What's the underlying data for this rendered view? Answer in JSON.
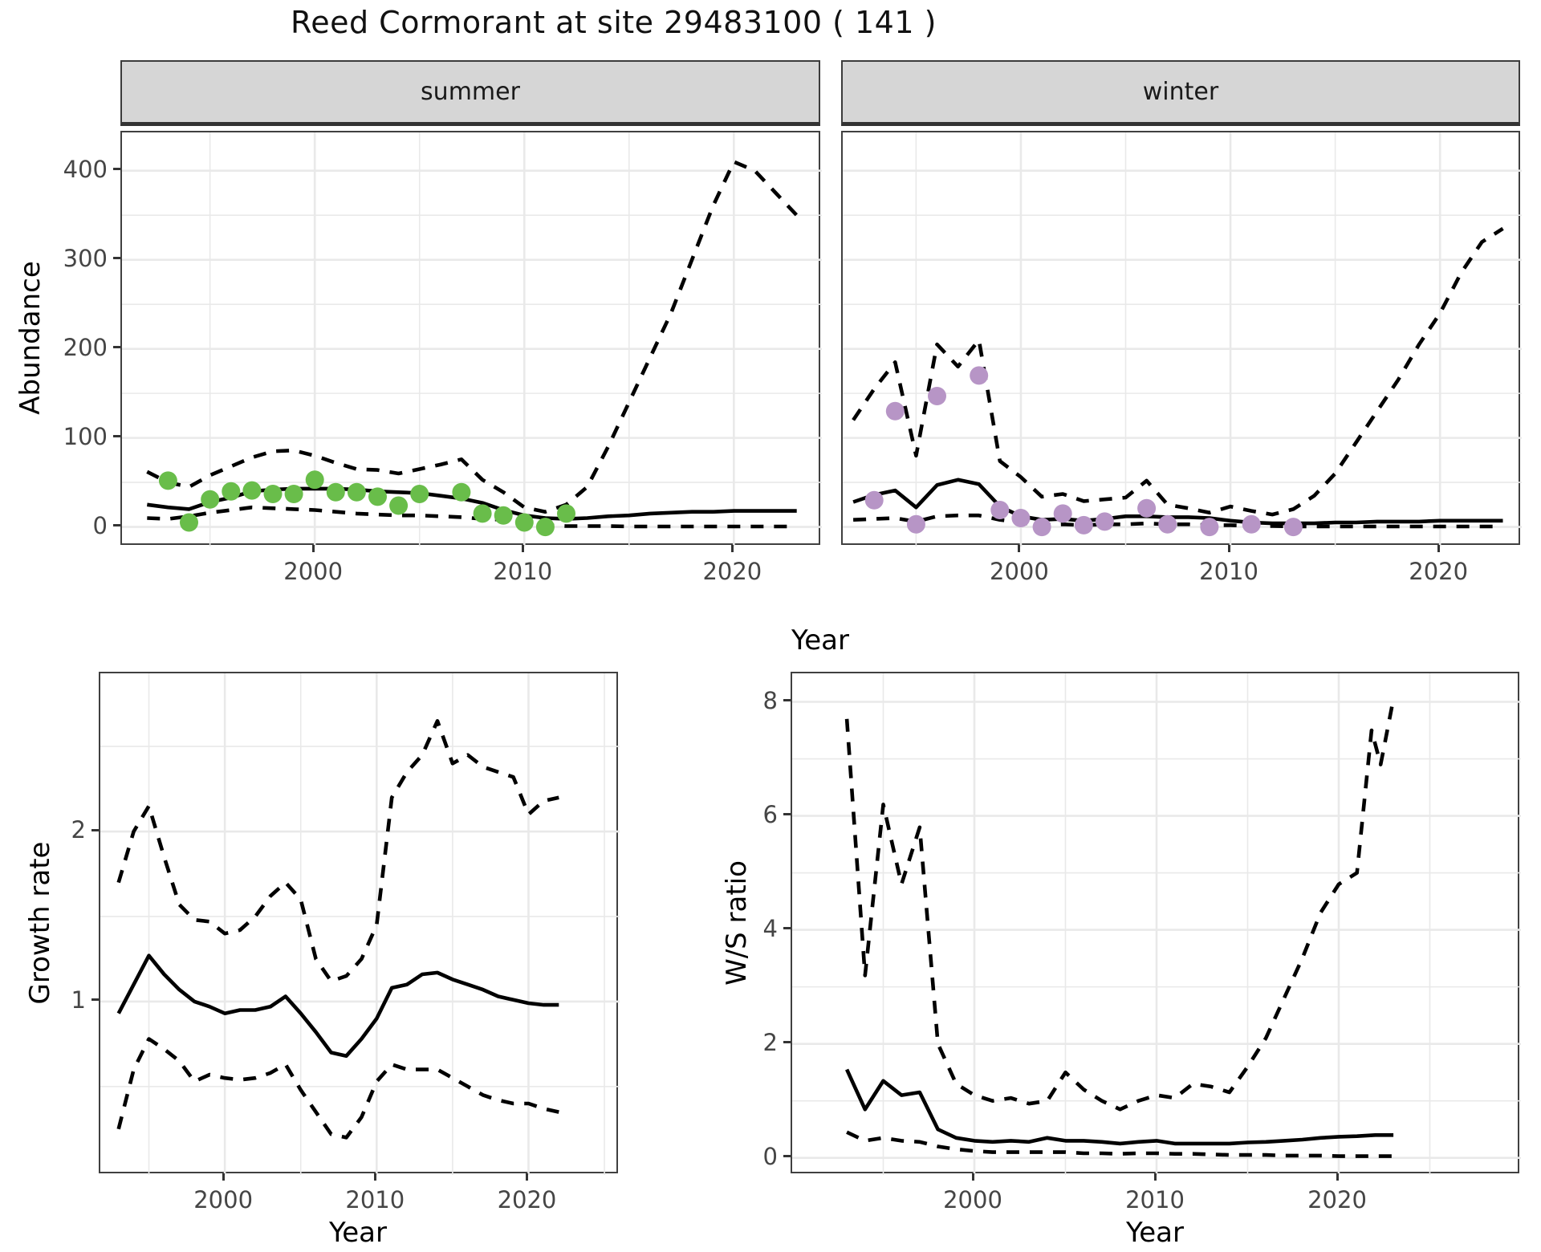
{
  "title": "Reed Cormorant at site 29483100 ( 141 )",
  "facets": {
    "summer": "summer",
    "winter": "winter"
  },
  "axis_labels": {
    "abundance": "Abundance",
    "year_top": "Year",
    "year_bottom_left": "Year",
    "year_bottom_right": "Year",
    "growth_rate": "Growth rate",
    "ws_ratio": "W/S ratio"
  },
  "colors": {
    "observed_summer": "#69bd4a",
    "observed_winter": "#b795c6",
    "line": "#000000",
    "grid": "#e9e9e9",
    "strip_bg": "#d6d6d6",
    "panel_border": "#404040",
    "tick_text": "#454545"
  },
  "chart_data": [
    {
      "id": "summer-abundance",
      "type": "line",
      "title": "summer",
      "xlabel": "Year",
      "ylabel": "Abundance",
      "xlim": [
        1990.8,
        2024.2
      ],
      "ylim": [
        -22,
        443
      ],
      "xticks": [
        2000,
        2010,
        2020
      ],
      "yticks": [
        0,
        100,
        200,
        300,
        400
      ],
      "xminor": [
        1995,
        2005,
        2015
      ],
      "yminor": [
        50,
        150,
        250,
        350
      ],
      "grid": true,
      "legend_position": "none",
      "series": [
        {
          "name": "ci-upper",
          "style": "dashed",
          "x": [
            1992,
            1993,
            1994,
            1995,
            1996,
            1997,
            1998,
            1999,
            2000,
            2001,
            2002,
            2003,
            2004,
            2005,
            2006,
            2007,
            2008,
            2009,
            2010,
            2011,
            2012,
            2013,
            2014,
            2015,
            2016,
            2017,
            2018,
            2019,
            2020,
            2021,
            2022,
            2023
          ],
          "y": [
            62,
            50,
            45,
            58,
            68,
            78,
            85,
            86,
            80,
            72,
            65,
            64,
            60,
            65,
            70,
            76,
            53,
            39,
            22,
            17,
            25,
            45,
            90,
            140,
            190,
            240,
            300,
            360,
            410,
            400,
            375,
            350
          ]
        },
        {
          "name": "ci-lower",
          "style": "dashed",
          "x": [
            1992,
            1993,
            1994,
            1995,
            1996,
            1997,
            1998,
            1999,
            2000,
            2001,
            2002,
            2003,
            2004,
            2005,
            2006,
            2007,
            2008,
            2009,
            2010,
            2011,
            2012,
            2013,
            2014,
            2015,
            2016,
            2017,
            2018,
            2019,
            2020,
            2021,
            2022,
            2023
          ],
          "y": [
            10,
            9,
            12,
            16,
            19,
            22,
            21,
            20,
            19,
            17,
            15,
            14,
            13,
            13,
            12,
            11,
            9,
            8,
            5,
            2,
            1,
            1,
            1,
            0.5,
            0.5,
            0.5,
            0.5,
            0.5,
            0.5,
            0.5,
            0.5,
            0.5
          ]
        },
        {
          "name": "fit-median",
          "style": "solid",
          "x": [
            1992,
            1993,
            1994,
            1995,
            1996,
            1997,
            1998,
            1999,
            2000,
            2001,
            2002,
            2003,
            2004,
            2005,
            2006,
            2007,
            2008,
            2009,
            2010,
            2011,
            2012,
            2013,
            2014,
            2015,
            2016,
            2017,
            2018,
            2019,
            2020,
            2021,
            2022,
            2023
          ],
          "y": [
            25,
            22,
            20,
            28,
            33,
            40,
            42,
            43,
            43,
            43,
            42,
            40,
            39,
            38,
            35,
            32,
            27,
            19,
            13,
            10,
            9,
            10,
            12,
            13,
            15,
            16,
            17,
            17,
            18,
            18,
            18,
            18
          ]
        }
      ],
      "points": {
        "name": "observed-summer",
        "color": "#69bd4a",
        "x": [
          1993,
          1994,
          1995,
          1996,
          1997,
          1998,
          1999,
          2000,
          2001,
          2002,
          2003,
          2004,
          2005,
          2007,
          2008,
          2009,
          2010,
          2011,
          2012
        ],
        "y": [
          52,
          5,
          31,
          40,
          41,
          37,
          37,
          53,
          39,
          39,
          34,
          24,
          37,
          39,
          15,
          13,
          5,
          0,
          15
        ]
      }
    },
    {
      "id": "winter-abundance",
      "type": "line",
      "title": "winter",
      "xlabel": "Year",
      "ylabel": "Abundance",
      "xlim": [
        1991.5,
        2023.9
      ],
      "ylim": [
        -22,
        443
      ],
      "xticks": [
        2000,
        2010,
        2020
      ],
      "yticks": [
        0,
        100,
        200,
        300,
        400
      ],
      "xminor": [
        1995,
        2005,
        2015
      ],
      "yminor": [
        50,
        150,
        250,
        350
      ],
      "grid": true,
      "legend_position": "none",
      "series": [
        {
          "name": "ci-upper",
          "style": "dashed",
          "x": [
            1992,
            1993,
            1994,
            1995,
            1996,
            1997,
            1998,
            1999,
            2000,
            2001,
            2002,
            2003,
            2004,
            2005,
            2006,
            2007,
            2008,
            2009,
            2010,
            2011,
            2012,
            2013,
            2014,
            2015,
            2016,
            2017,
            2018,
            2019,
            2020,
            2021,
            2022,
            2023
          ],
          "y": [
            120,
            155,
            185,
            80,
            205,
            180,
            210,
            74,
            56,
            34,
            37,
            29,
            31,
            33,
            52,
            25,
            21,
            16,
            23,
            18,
            14,
            20,
            35,
            60,
            95,
            130,
            165,
            205,
            240,
            285,
            320,
            335
          ]
        },
        {
          "name": "ci-lower",
          "style": "dashed",
          "x": [
            1992,
            1993,
            1994,
            1995,
            1996,
            1997,
            1998,
            1999,
            2000,
            2001,
            2002,
            2003,
            2004,
            2005,
            2006,
            2007,
            2008,
            2009,
            2010,
            2011,
            2012,
            2013,
            2014,
            2015,
            2016,
            2017,
            2018,
            2019,
            2020,
            2021,
            2022,
            2023
          ],
          "y": [
            8,
            9,
            10,
            6,
            12,
            13,
            13,
            8,
            5,
            2,
            3,
            2,
            3,
            3,
            4,
            3,
            3,
            2,
            2,
            1,
            1,
            0.5,
            0.5,
            0.5,
            0.5,
            0.5,
            0.5,
            0.5,
            0.5,
            0.5,
            0.5,
            0.5
          ]
        },
        {
          "name": "fit-median",
          "style": "solid",
          "x": [
            1992,
            1993,
            1994,
            1995,
            1996,
            1997,
            1998,
            1999,
            2000,
            2001,
            2002,
            2003,
            2004,
            2005,
            2006,
            2007,
            2008,
            2009,
            2010,
            2011,
            2012,
            2013,
            2014,
            2015,
            2016,
            2017,
            2018,
            2019,
            2020,
            2021,
            2022,
            2023
          ],
          "y": [
            28,
            36,
            41,
            22,
            47,
            53,
            48,
            23,
            12,
            8,
            9,
            7,
            9,
            12,
            12,
            11,
            11,
            10,
            7,
            5,
            4,
            4,
            4,
            5,
            5,
            6,
            6,
            6,
            7,
            7,
            7,
            7
          ]
        }
      ],
      "points": {
        "name": "observed-winter",
        "color": "#b795c6",
        "x": [
          1993,
          1994,
          1995,
          1996,
          1998,
          1999,
          2000,
          2001,
          2002,
          2003,
          2004,
          2006,
          2007,
          2009,
          2011,
          2013
        ],
        "y": [
          30,
          130,
          3,
          147,
          170,
          19,
          10,
          0,
          15,
          2,
          6,
          21,
          3,
          0,
          3,
          0
        ]
      }
    },
    {
      "id": "growth-rate",
      "type": "line",
      "title": "",
      "xlabel": "Year",
      "ylabel": "Growth rate",
      "xlim": [
        1991.8,
        2026.0
      ],
      "ylim": [
        -0.02,
        2.93
      ],
      "xticks": [
        2000,
        2010,
        2020
      ],
      "yticks": [
        1,
        2
      ],
      "xminor": [
        1995,
        2005,
        2015,
        2025
      ],
      "yminor": [
        0.5,
        1.5,
        2.5
      ],
      "grid": true,
      "legend_position": "none",
      "series": [
        {
          "name": "ci-upper",
          "style": "dashed",
          "x": [
            1993,
            1994,
            1995,
            1996,
            1997,
            1998,
            1999,
            2000,
            2001,
            2002,
            2003,
            2004,
            2005,
            2006,
            2007,
            2008,
            2009,
            2010,
            2011,
            2012,
            2013,
            2014,
            2015,
            2016,
            2017,
            2018,
            2019,
            2020,
            2021,
            2022
          ],
          "y": [
            1.7,
            2.0,
            2.15,
            1.85,
            1.57,
            1.48,
            1.47,
            1.4,
            1.42,
            1.5,
            1.62,
            1.7,
            1.6,
            1.25,
            1.12,
            1.15,
            1.25,
            1.45,
            2.2,
            2.35,
            2.45,
            2.65,
            2.4,
            2.45,
            2.38,
            2.35,
            2.32,
            2.1,
            2.18,
            2.2
          ]
        },
        {
          "name": "ci-lower",
          "style": "dashed",
          "x": [
            1993,
            1994,
            1995,
            1996,
            1997,
            1998,
            1999,
            2000,
            2001,
            2002,
            2003,
            2004,
            2005,
            2006,
            2007,
            2008,
            2009,
            2010,
            2011,
            2012,
            2013,
            2014,
            2015,
            2016,
            2017,
            2018,
            2019,
            2020,
            2021,
            2022
          ],
          "y": [
            0.25,
            0.6,
            0.78,
            0.72,
            0.65,
            0.53,
            0.57,
            0.55,
            0.54,
            0.55,
            0.58,
            0.63,
            0.48,
            0.35,
            0.22,
            0.2,
            0.32,
            0.53,
            0.63,
            0.6,
            0.6,
            0.6,
            0.55,
            0.5,
            0.45,
            0.42,
            0.4,
            0.4,
            0.37,
            0.35
          ]
        },
        {
          "name": "median",
          "style": "solid",
          "x": [
            1993,
            1994,
            1995,
            1996,
            1997,
            1998,
            1999,
            2000,
            2001,
            2002,
            2003,
            2004,
            2005,
            2006,
            2007,
            2008,
            2009,
            2010,
            2011,
            2012,
            2013,
            2014,
            2015,
            2016,
            2017,
            2018,
            2019,
            2020,
            2021,
            2022
          ],
          "y": [
            0.93,
            1.1,
            1.27,
            1.16,
            1.07,
            1.0,
            0.97,
            0.93,
            0.95,
            0.95,
            0.97,
            1.03,
            0.93,
            0.82,
            0.7,
            0.68,
            0.78,
            0.9,
            1.08,
            1.1,
            1.16,
            1.17,
            1.13,
            1.1,
            1.07,
            1.03,
            1.01,
            0.99,
            0.98,
            0.98
          ]
        }
      ],
      "points": null
    },
    {
      "id": "ws-ratio",
      "type": "line",
      "title": "",
      "xlabel": "Year",
      "ylabel": "W/S ratio",
      "xlim": [
        1990.0,
        2030.0
      ],
      "ylim": [
        -0.3,
        8.5
      ],
      "xticks": [
        2000,
        2010,
        2020
      ],
      "yticks": [
        0,
        2,
        4,
        6,
        8
      ],
      "xminor": [
        1995,
        2005,
        2015,
        2025
      ],
      "yminor": [
        1,
        3,
        5,
        7
      ],
      "grid": true,
      "legend_position": "none",
      "series": [
        {
          "name": "ci-upper",
          "style": "dashed",
          "x": [
            1993,
            1994,
            1995,
            1996,
            1997,
            1998,
            1999,
            2000,
            2001,
            2002,
            2003,
            2004,
            2005,
            2006,
            2007,
            2008,
            2009,
            2010,
            2011,
            2012,
            2013,
            2014,
            2015,
            2016,
            2017,
            2018,
            2019,
            2020,
            2021,
            2021.8,
            2022.3,
            2023
          ],
          "y": [
            7.7,
            3.2,
            6.2,
            4.8,
            5.8,
            2.0,
            1.3,
            1.1,
            1.0,
            1.05,
            0.95,
            1.0,
            1.5,
            1.2,
            1.0,
            0.85,
            1.0,
            1.1,
            1.05,
            1.3,
            1.25,
            1.15,
            1.6,
            2.1,
            2.8,
            3.5,
            4.3,
            4.8,
            5.0,
            7.5,
            6.9,
            8.05
          ]
        },
        {
          "name": "ci-lower",
          "style": "dashed",
          "x": [
            1993,
            1994,
            1995,
            1996,
            1997,
            1998,
            1999,
            2000,
            2001,
            2002,
            2003,
            2004,
            2005,
            2006,
            2007,
            2008,
            2009,
            2010,
            2011,
            2012,
            2013,
            2014,
            2015,
            2016,
            2017,
            2018,
            2019,
            2020,
            2021,
            2022,
            2023
          ],
          "y": [
            0.45,
            0.3,
            0.35,
            0.3,
            0.28,
            0.2,
            0.15,
            0.12,
            0.1,
            0.1,
            0.1,
            0.1,
            0.1,
            0.08,
            0.08,
            0.07,
            0.08,
            0.08,
            0.07,
            0.07,
            0.06,
            0.05,
            0.05,
            0.05,
            0.04,
            0.04,
            0.04,
            0.03,
            0.03,
            0.03,
            0.03
          ]
        },
        {
          "name": "median",
          "style": "solid",
          "x": [
            1993,
            1994,
            1995,
            1996,
            1997,
            1998,
            1999,
            2000,
            2001,
            2002,
            2003,
            2004,
            2005,
            2006,
            2007,
            2008,
            2009,
            2010,
            2011,
            2012,
            2013,
            2014,
            2015,
            2016,
            2017,
            2018,
            2019,
            2020,
            2021,
            2022,
            2023
          ],
          "y": [
            1.55,
            0.85,
            1.35,
            1.1,
            1.15,
            0.5,
            0.35,
            0.3,
            0.28,
            0.3,
            0.28,
            0.35,
            0.3,
            0.3,
            0.28,
            0.25,
            0.28,
            0.3,
            0.25,
            0.25,
            0.25,
            0.25,
            0.27,
            0.28,
            0.3,
            0.32,
            0.35,
            0.37,
            0.38,
            0.4,
            0.4
          ]
        }
      ],
      "points": null
    }
  ]
}
